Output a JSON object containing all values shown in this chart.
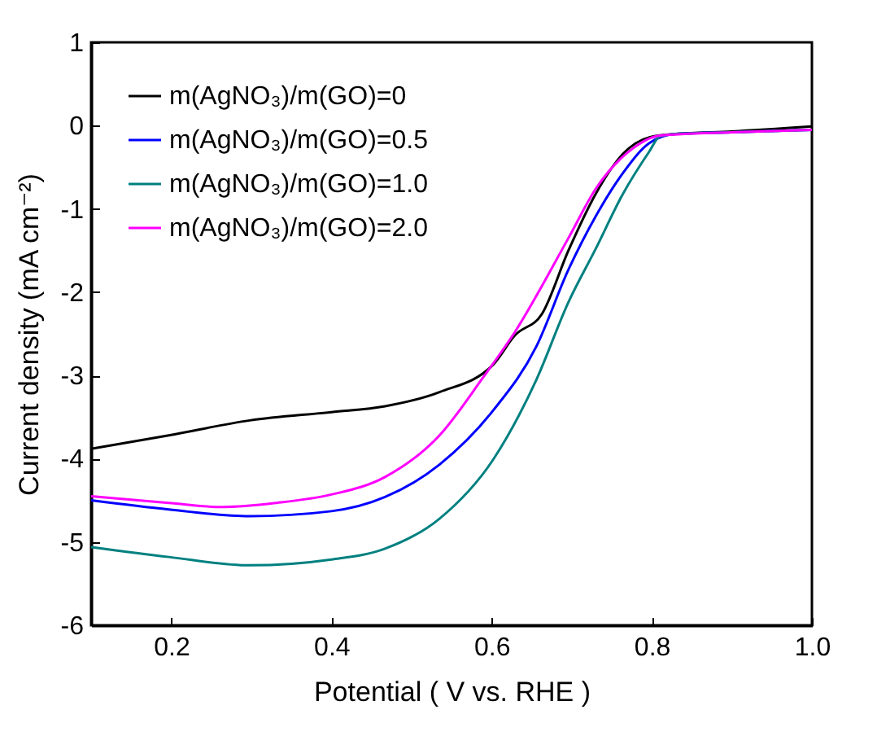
{
  "chart_data": {
    "type": "line",
    "xlabel": "Potential ( V vs. RHE )",
    "ylabel": "Current density (mA cm⁻²)",
    "xlim": [
      0.1,
      1.0
    ],
    "ylim": [
      -6,
      1
    ],
    "xticks": [
      0.2,
      0.4,
      0.6,
      0.8,
      {
        "value": 1,
        "label": "1.0"
      }
    ],
    "yticks": [
      -6,
      -5,
      -4,
      -3,
      -2,
      -1,
      0,
      1
    ],
    "legend": "top left",
    "grid": false,
    "line_style": "solid",
    "series": [
      {
        "name": "m(AgNO₃)/m(GO)=0",
        "color": "#000000",
        "x": [
          0.1,
          0.197,
          0.298,
          0.4,
          0.467,
          0.535,
          0.602,
          0.629,
          0.663,
          0.696,
          0.73,
          0.764,
          0.797,
          0.83,
          0.9,
          1.0
        ],
        "values": [
          -3.88,
          -3.72,
          -3.54,
          -3.44,
          -3.37,
          -3.2,
          -2.87,
          -2.52,
          -2.26,
          -1.5,
          -0.82,
          -0.34,
          -0.14,
          -0.1,
          -0.07,
          -0.01
        ]
      },
      {
        "name": "m(AgNO₃)/m(GO)=0.5",
        "color": "#0000ff",
        "x": [
          0.1,
          0.197,
          0.298,
          0.4,
          0.467,
          0.535,
          0.602,
          0.656,
          0.696,
          0.73,
          0.764,
          0.797,
          0.83,
          0.9,
          1.0
        ],
        "values": [
          -4.5,
          -4.61,
          -4.69,
          -4.63,
          -4.46,
          -4.07,
          -3.42,
          -2.65,
          -1.73,
          -1.09,
          -0.57,
          -0.21,
          -0.1,
          -0.08,
          -0.05
        ]
      },
      {
        "name": "m(AgNO₃)/m(GO)=1.0",
        "color": "#008080",
        "x": [
          0.1,
          0.197,
          0.298,
          0.4,
          0.467,
          0.535,
          0.602,
          0.656,
          0.696,
          0.73,
          0.764,
          0.797,
          0.81,
          0.83,
          0.9,
          1.0
        ],
        "values": [
          -5.06,
          -5.18,
          -5.28,
          -5.21,
          -5.08,
          -4.72,
          -4.01,
          -3.05,
          -2.12,
          -1.48,
          -0.82,
          -0.31,
          -0.13,
          -0.1,
          -0.08,
          -0.05
        ]
      },
      {
        "name": "m(AgNO₃)/m(GO)=2.0",
        "color": "#ff00ff",
        "x": [
          0.1,
          0.197,
          0.265,
          0.332,
          0.4,
          0.467,
          0.535,
          0.589,
          0.629,
          0.696,
          0.73,
          0.777,
          0.81,
          0.9,
          1.0
        ],
        "values": [
          -4.45,
          -4.53,
          -4.58,
          -4.53,
          -4.43,
          -4.22,
          -3.72,
          -3.03,
          -2.48,
          -1.35,
          -0.76,
          -0.27,
          -0.12,
          -0.08,
          -0.05
        ]
      }
    ]
  }
}
